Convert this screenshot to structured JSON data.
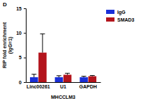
{
  "chart_data": {
    "type": "bar",
    "title": "D",
    "y_label": [
      "RIP fold enrichment",
      "(IgG=1)"
    ],
    "x_label": "MHCCLM3",
    "categories": [
      "Linc00261",
      "U1",
      "GAPDH"
    ],
    "series": [
      {
        "name": "IgG",
        "color": "#1a2fd8",
        "values": [
          1,
          1,
          1
        ],
        "errors": [
          0.6,
          0.3,
          0.2
        ]
      },
      {
        "name": "SMAD3",
        "color": "#b3141c",
        "values": [
          6,
          1.5,
          1.2
        ],
        "errors": [
          3.8,
          0.3,
          0.15
        ]
      }
    ],
    "ylim": [
      0,
      15
    ],
    "yticks": [
      0,
      5,
      10,
      15
    ],
    "legend": "top-right"
  }
}
